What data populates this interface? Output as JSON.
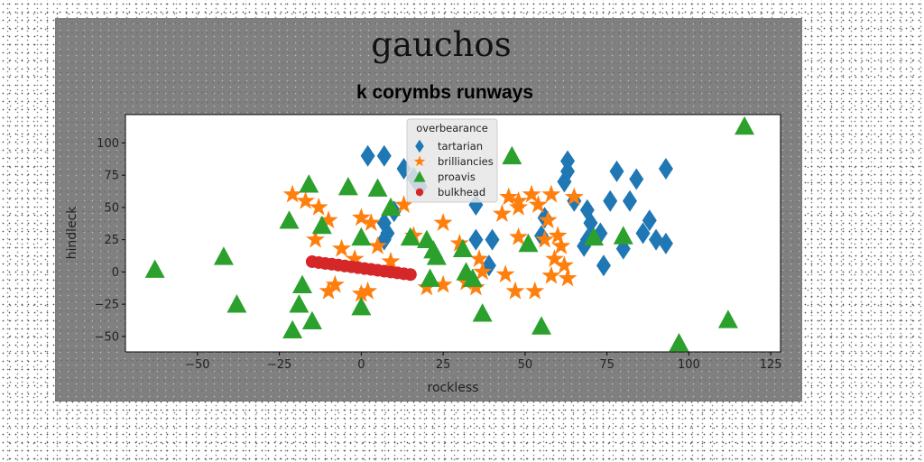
{
  "chart_data": {
    "type": "scatter",
    "suptitle": "gauchos",
    "title": "k corymbs runways",
    "xlabel": "rockless",
    "ylabel": "hindleck",
    "xlim": [
      -72,
      128
    ],
    "ylim": [
      -62,
      122
    ],
    "xticks": [
      -50,
      -25,
      0,
      25,
      50,
      75,
      100,
      125
    ],
    "yticks": [
      -50,
      -25,
      0,
      25,
      50,
      75,
      100
    ],
    "grid": false,
    "legend": {
      "title": "overbearance",
      "placement": "upper center"
    },
    "series": [
      {
        "name": "tartarian",
        "marker": "diamond",
        "color": "#1f77b4",
        "points": [
          [
            2,
            90
          ],
          [
            7,
            90
          ],
          [
            13,
            80
          ],
          [
            16,
            73
          ],
          [
            18,
            66
          ],
          [
            10,
            47
          ],
          [
            7,
            38
          ],
          [
            8,
            30
          ],
          [
            7,
            25
          ],
          [
            35,
            52
          ],
          [
            35,
            25
          ],
          [
            40,
            25
          ],
          [
            39,
            5
          ],
          [
            56,
            42
          ],
          [
            55,
            28
          ],
          [
            63,
            78
          ],
          [
            63,
            86
          ],
          [
            62,
            70
          ],
          [
            65,
            55
          ],
          [
            69,
            48
          ],
          [
            70,
            38
          ],
          [
            69,
            25
          ],
          [
            68,
            20
          ],
          [
            73,
            30
          ],
          [
            78,
            78
          ],
          [
            76,
            55
          ],
          [
            80,
            18
          ],
          [
            84,
            72
          ],
          [
            82,
            55
          ],
          [
            88,
            40
          ],
          [
            86,
            30
          ],
          [
            90,
            25
          ],
          [
            93,
            22
          ],
          [
            93,
            80
          ],
          [
            74,
            5
          ]
        ]
      },
      {
        "name": "brilliancies",
        "color": "#ff7f0e",
        "marker": "star",
        "points": [
          [
            -21,
            60
          ],
          [
            -17,
            55
          ],
          [
            -13,
            50
          ],
          [
            -10,
            40
          ],
          [
            -14,
            25
          ],
          [
            -6,
            18
          ],
          [
            -8,
            -10
          ],
          [
            -10,
            -15
          ],
          [
            -2,
            10
          ],
          [
            0,
            42
          ],
          [
            3,
            38
          ],
          [
            5,
            20
          ],
          [
            9,
            8
          ],
          [
            2,
            -15
          ],
          [
            0,
            -17
          ],
          [
            13,
            52
          ],
          [
            16,
            28
          ],
          [
            25,
            38
          ],
          [
            20,
            -12
          ],
          [
            25,
            -10
          ],
          [
            30,
            22
          ],
          [
            32,
            -8
          ],
          [
            35,
            -12
          ],
          [
            36,
            10
          ],
          [
            37,
            0
          ],
          [
            43,
            45
          ],
          [
            45,
            58
          ],
          [
            48,
            55
          ],
          [
            48,
            50
          ],
          [
            52,
            60
          ],
          [
            54,
            52
          ],
          [
            57,
            40
          ],
          [
            56,
            25
          ],
          [
            58,
            60
          ],
          [
            60,
            28
          ],
          [
            61,
            20
          ],
          [
            59,
            10
          ],
          [
            58,
            -3
          ],
          [
            53,
            -15
          ],
          [
            47,
            -15
          ],
          [
            65,
            58
          ],
          [
            63,
            -5
          ],
          [
            62,
            5
          ],
          [
            44,
            -2
          ],
          [
            48,
            27
          ]
        ]
      },
      {
        "name": "proavis",
        "color": "#2ca02c",
        "marker": "triangle",
        "points": [
          [
            -63,
            2
          ],
          [
            -42,
            12
          ],
          [
            -38,
            -25
          ],
          [
            -22,
            40
          ],
          [
            -21,
            -45
          ],
          [
            -18,
            -10
          ],
          [
            -19,
            -25
          ],
          [
            -16,
            68
          ],
          [
            -15,
            -38
          ],
          [
            -12,
            36
          ],
          [
            -4,
            66
          ],
          [
            0,
            27
          ],
          [
            0,
            -27
          ],
          [
            5,
            65
          ],
          [
            9,
            50
          ],
          [
            15,
            27
          ],
          [
            21,
            -5
          ],
          [
            20,
            25
          ],
          [
            22,
            17
          ],
          [
            23,
            12
          ],
          [
            31,
            18
          ],
          [
            32,
            0
          ],
          [
            34,
            -5
          ],
          [
            37,
            -32
          ],
          [
            46,
            90
          ],
          [
            51,
            22
          ],
          [
            55,
            -42
          ],
          [
            71,
            27
          ],
          [
            80,
            28
          ],
          [
            97,
            -55
          ],
          [
            112,
            -37
          ],
          [
            117,
            113
          ]
        ]
      },
      {
        "name": "bulkhead",
        "color": "#d62728",
        "marker": "circle",
        "points": [
          [
            -15,
            8
          ],
          [
            -13,
            7.3
          ],
          [
            -11,
            6.6
          ],
          [
            -9,
            6
          ],
          [
            -7,
            5.3
          ],
          [
            -5,
            4.6
          ],
          [
            -3,
            4
          ],
          [
            -1,
            3.3
          ],
          [
            1,
            2.6
          ],
          [
            3,
            2
          ],
          [
            5,
            1.3
          ],
          [
            7,
            0.6
          ],
          [
            9,
            0
          ],
          [
            11,
            -0.7
          ],
          [
            13,
            -1.4
          ],
          [
            15,
            -2
          ]
        ]
      }
    ]
  }
}
